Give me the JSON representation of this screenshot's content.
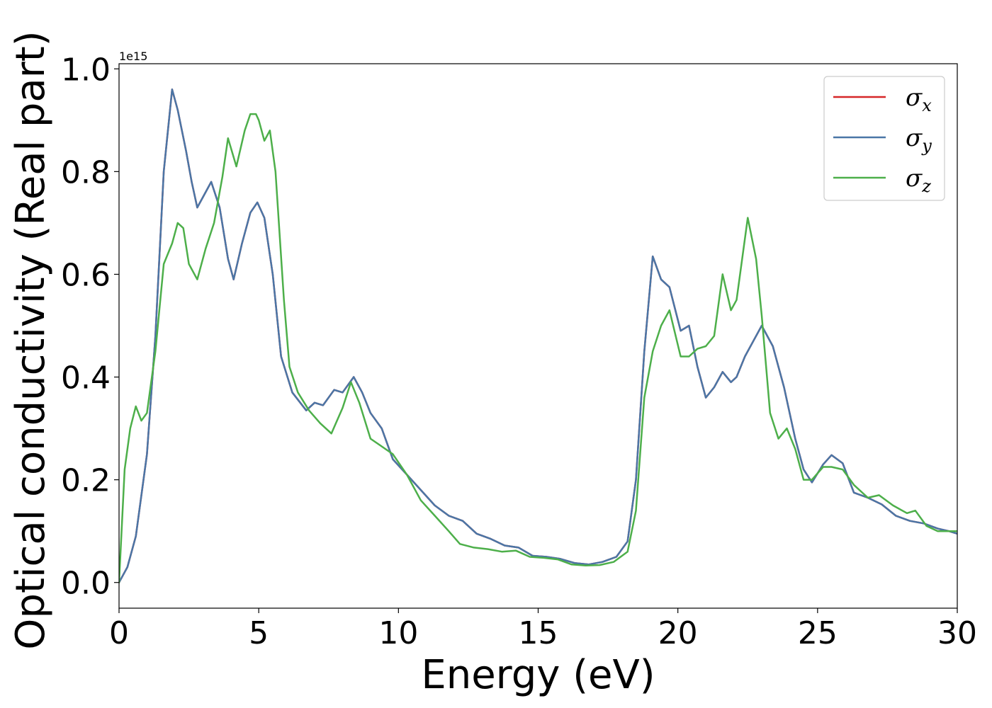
{
  "chart_data": {
    "type": "line",
    "title": "",
    "xlabel": "Energy (eV)",
    "ylabel": "Optical conductivity (Real part)",
    "y_offset_text": "1e15",
    "xlim": [
      0,
      30
    ],
    "ylim": [
      -0.05,
      1.01
    ],
    "xticks": [
      0,
      5,
      10,
      15,
      20,
      25,
      30
    ],
    "yticks": [
      0.0,
      0.2,
      0.4,
      0.6,
      0.8,
      1.0
    ],
    "xtick_labels": [
      "0",
      "5",
      "10",
      "15",
      "20",
      "25",
      "30"
    ],
    "ytick_labels": [
      "0.0",
      "0.2",
      "0.4",
      "0.6",
      "0.8",
      "1.0"
    ],
    "grid": false,
    "legend_position": "top-right",
    "series": [
      {
        "name": "σ",
        "subscript": "x",
        "color": "#d62728",
        "points": [
          [
            0,
            0
          ],
          [
            0.3,
            0.03
          ],
          [
            0.6,
            0.09
          ],
          [
            1.0,
            0.25
          ],
          [
            1.3,
            0.48
          ],
          [
            1.6,
            0.8
          ],
          [
            1.9,
            0.96
          ],
          [
            2.1,
            0.92
          ],
          [
            2.4,
            0.84
          ],
          [
            2.6,
            0.78
          ],
          [
            2.8,
            0.73
          ],
          [
            3.0,
            0.75
          ],
          [
            3.3,
            0.78
          ],
          [
            3.6,
            0.73
          ],
          [
            3.9,
            0.63
          ],
          [
            4.1,
            0.59
          ],
          [
            4.4,
            0.66
          ],
          [
            4.7,
            0.72
          ],
          [
            4.95,
            0.74
          ],
          [
            5.2,
            0.71
          ],
          [
            5.5,
            0.6
          ],
          [
            5.8,
            0.44
          ],
          [
            6.2,
            0.37
          ],
          [
            6.7,
            0.335
          ],
          [
            7.0,
            0.35
          ],
          [
            7.3,
            0.345
          ],
          [
            7.7,
            0.375
          ],
          [
            8.0,
            0.37
          ],
          [
            8.4,
            0.4
          ],
          [
            8.7,
            0.37
          ],
          [
            9.0,
            0.33
          ],
          [
            9.4,
            0.3
          ],
          [
            9.8,
            0.24
          ],
          [
            10.3,
            0.21
          ],
          [
            10.8,
            0.18
          ],
          [
            11.3,
            0.15
          ],
          [
            11.8,
            0.13
          ],
          [
            12.3,
            0.12
          ],
          [
            12.8,
            0.095
          ],
          [
            13.3,
            0.085
          ],
          [
            13.8,
            0.072
          ],
          [
            14.3,
            0.068
          ],
          [
            14.8,
            0.052
          ],
          [
            15.3,
            0.05
          ],
          [
            15.8,
            0.046
          ],
          [
            16.3,
            0.038
          ],
          [
            16.8,
            0.035
          ],
          [
            17.3,
            0.04
          ],
          [
            17.8,
            0.05
          ],
          [
            18.2,
            0.08
          ],
          [
            18.5,
            0.2
          ],
          [
            18.8,
            0.45
          ],
          [
            19.1,
            0.635
          ],
          [
            19.4,
            0.59
          ],
          [
            19.7,
            0.575
          ],
          [
            20.1,
            0.49
          ],
          [
            20.4,
            0.5
          ],
          [
            20.7,
            0.42
          ],
          [
            21.0,
            0.36
          ],
          [
            21.3,
            0.38
          ],
          [
            21.6,
            0.41
          ],
          [
            21.9,
            0.39
          ],
          [
            22.1,
            0.4
          ],
          [
            22.4,
            0.44
          ],
          [
            22.7,
            0.47
          ],
          [
            23.0,
            0.5
          ],
          [
            23.4,
            0.46
          ],
          [
            23.8,
            0.38
          ],
          [
            24.2,
            0.28
          ],
          [
            24.5,
            0.22
          ],
          [
            24.8,
            0.195
          ],
          [
            25.2,
            0.23
          ],
          [
            25.5,
            0.248
          ],
          [
            25.9,
            0.232
          ],
          [
            26.3,
            0.175
          ],
          [
            26.8,
            0.165
          ],
          [
            27.3,
            0.152
          ],
          [
            27.8,
            0.13
          ],
          [
            28.3,
            0.12
          ],
          [
            28.8,
            0.115
          ],
          [
            29.3,
            0.105
          ],
          [
            29.7,
            0.1
          ],
          [
            30.0,
            0.095
          ]
        ]
      },
      {
        "name": "σ",
        "subscript": "y",
        "color": "#4a76a6",
        "points": [
          [
            0,
            0
          ],
          [
            0.3,
            0.03
          ],
          [
            0.6,
            0.09
          ],
          [
            1.0,
            0.25
          ],
          [
            1.3,
            0.48
          ],
          [
            1.6,
            0.8
          ],
          [
            1.9,
            0.96
          ],
          [
            2.1,
            0.92
          ],
          [
            2.4,
            0.84
          ],
          [
            2.6,
            0.78
          ],
          [
            2.8,
            0.73
          ],
          [
            3.0,
            0.75
          ],
          [
            3.3,
            0.78
          ],
          [
            3.6,
            0.73
          ],
          [
            3.9,
            0.63
          ],
          [
            4.1,
            0.59
          ],
          [
            4.4,
            0.66
          ],
          [
            4.7,
            0.72
          ],
          [
            4.95,
            0.74
          ],
          [
            5.2,
            0.71
          ],
          [
            5.5,
            0.6
          ],
          [
            5.8,
            0.44
          ],
          [
            6.2,
            0.37
          ],
          [
            6.7,
            0.335
          ],
          [
            7.0,
            0.35
          ],
          [
            7.3,
            0.345
          ],
          [
            7.7,
            0.375
          ],
          [
            8.0,
            0.37
          ],
          [
            8.4,
            0.4
          ],
          [
            8.7,
            0.37
          ],
          [
            9.0,
            0.33
          ],
          [
            9.4,
            0.3
          ],
          [
            9.8,
            0.24
          ],
          [
            10.3,
            0.21
          ],
          [
            10.8,
            0.18
          ],
          [
            11.3,
            0.15
          ],
          [
            11.8,
            0.13
          ],
          [
            12.3,
            0.12
          ],
          [
            12.8,
            0.095
          ],
          [
            13.3,
            0.085
          ],
          [
            13.8,
            0.072
          ],
          [
            14.3,
            0.068
          ],
          [
            14.8,
            0.052
          ],
          [
            15.3,
            0.05
          ],
          [
            15.8,
            0.046
          ],
          [
            16.3,
            0.038
          ],
          [
            16.8,
            0.035
          ],
          [
            17.3,
            0.04
          ],
          [
            17.8,
            0.05
          ],
          [
            18.2,
            0.08
          ],
          [
            18.5,
            0.2
          ],
          [
            18.8,
            0.45
          ],
          [
            19.1,
            0.635
          ],
          [
            19.4,
            0.59
          ],
          [
            19.7,
            0.575
          ],
          [
            20.1,
            0.49
          ],
          [
            20.4,
            0.5
          ],
          [
            20.7,
            0.42
          ],
          [
            21.0,
            0.36
          ],
          [
            21.3,
            0.38
          ],
          [
            21.6,
            0.41
          ],
          [
            21.9,
            0.39
          ],
          [
            22.1,
            0.4
          ],
          [
            22.4,
            0.44
          ],
          [
            22.7,
            0.47
          ],
          [
            23.0,
            0.5
          ],
          [
            23.4,
            0.46
          ],
          [
            23.8,
            0.38
          ],
          [
            24.2,
            0.28
          ],
          [
            24.5,
            0.22
          ],
          [
            24.8,
            0.195
          ],
          [
            25.2,
            0.23
          ],
          [
            25.5,
            0.248
          ],
          [
            25.9,
            0.232
          ],
          [
            26.3,
            0.175
          ],
          [
            26.8,
            0.165
          ],
          [
            27.3,
            0.152
          ],
          [
            27.8,
            0.13
          ],
          [
            28.3,
            0.12
          ],
          [
            28.8,
            0.115
          ],
          [
            29.3,
            0.105
          ],
          [
            29.7,
            0.1
          ],
          [
            30.0,
            0.095
          ]
        ]
      },
      {
        "name": "σ",
        "subscript": "z",
        "color": "#4daf4a",
        "points": [
          [
            0,
            0
          ],
          [
            0.2,
            0.22
          ],
          [
            0.4,
            0.3
          ],
          [
            0.6,
            0.343
          ],
          [
            0.8,
            0.315
          ],
          [
            1.0,
            0.33
          ],
          [
            1.3,
            0.45
          ],
          [
            1.6,
            0.62
          ],
          [
            1.9,
            0.66
          ],
          [
            2.1,
            0.7
          ],
          [
            2.3,
            0.69
          ],
          [
            2.5,
            0.62
          ],
          [
            2.8,
            0.59
          ],
          [
            3.1,
            0.65
          ],
          [
            3.4,
            0.7
          ],
          [
            3.7,
            0.79
          ],
          [
            3.9,
            0.865
          ],
          [
            4.2,
            0.81
          ],
          [
            4.5,
            0.88
          ],
          [
            4.7,
            0.912
          ],
          [
            4.9,
            0.912
          ],
          [
            5.0,
            0.9
          ],
          [
            5.2,
            0.86
          ],
          [
            5.4,
            0.88
          ],
          [
            5.6,
            0.8
          ],
          [
            5.9,
            0.55
          ],
          [
            6.1,
            0.42
          ],
          [
            6.4,
            0.37
          ],
          [
            6.8,
            0.335
          ],
          [
            7.2,
            0.31
          ],
          [
            7.6,
            0.29
          ],
          [
            8.0,
            0.34
          ],
          [
            8.3,
            0.39
          ],
          [
            8.6,
            0.35
          ],
          [
            9.0,
            0.28
          ],
          [
            9.4,
            0.265
          ],
          [
            9.8,
            0.25
          ],
          [
            10.3,
            0.21
          ],
          [
            10.8,
            0.16
          ],
          [
            11.3,
            0.13
          ],
          [
            11.8,
            0.1
          ],
          [
            12.2,
            0.075
          ],
          [
            12.7,
            0.068
          ],
          [
            13.2,
            0.065
          ],
          [
            13.7,
            0.06
          ],
          [
            14.2,
            0.062
          ],
          [
            14.7,
            0.05
          ],
          [
            15.2,
            0.048
          ],
          [
            15.7,
            0.045
          ],
          [
            16.2,
            0.035
          ],
          [
            16.7,
            0.033
          ],
          [
            17.2,
            0.034
          ],
          [
            17.7,
            0.04
          ],
          [
            18.2,
            0.06
          ],
          [
            18.5,
            0.14
          ],
          [
            18.8,
            0.36
          ],
          [
            19.1,
            0.45
          ],
          [
            19.4,
            0.5
          ],
          [
            19.7,
            0.53
          ],
          [
            20.1,
            0.44
          ],
          [
            20.4,
            0.44
          ],
          [
            20.7,
            0.455
          ],
          [
            21.0,
            0.46
          ],
          [
            21.3,
            0.48
          ],
          [
            21.6,
            0.6
          ],
          [
            21.9,
            0.53
          ],
          [
            22.1,
            0.55
          ],
          [
            22.5,
            0.71
          ],
          [
            22.8,
            0.63
          ],
          [
            23.0,
            0.52
          ],
          [
            23.3,
            0.33
          ],
          [
            23.6,
            0.28
          ],
          [
            23.9,
            0.3
          ],
          [
            24.2,
            0.26
          ],
          [
            24.5,
            0.2
          ],
          [
            24.8,
            0.2
          ],
          [
            25.2,
            0.225
          ],
          [
            25.5,
            0.225
          ],
          [
            25.9,
            0.22
          ],
          [
            26.3,
            0.19
          ],
          [
            26.8,
            0.165
          ],
          [
            27.2,
            0.17
          ],
          [
            27.7,
            0.15
          ],
          [
            28.2,
            0.135
          ],
          [
            28.5,
            0.14
          ],
          [
            28.9,
            0.11
          ],
          [
            29.3,
            0.1
          ],
          [
            29.7,
            0.1
          ],
          [
            30.0,
            0.1
          ]
        ]
      }
    ]
  }
}
